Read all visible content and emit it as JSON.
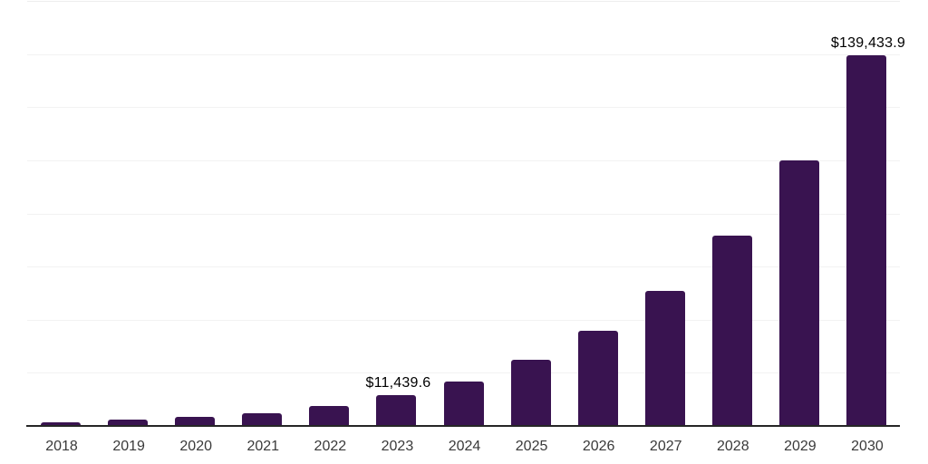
{
  "chart_data": {
    "type": "bar",
    "title": "",
    "xlabel": "",
    "ylabel": "",
    "categories": [
      "2018",
      "2019",
      "2020",
      "2021",
      "2022",
      "2023",
      "2024",
      "2025",
      "2026",
      "2027",
      "2028",
      "2029",
      "2030"
    ],
    "values": [
      1400,
      2250,
      3300,
      4800,
      7500,
      11439.6,
      16600,
      24800,
      35800,
      50700,
      71600,
      99900,
      139433.9
    ],
    "data_labels": {
      "2023": "$11,439.6",
      "2030": "$139,433.9"
    },
    "ylim": [
      0,
      160000
    ],
    "grid_step": 20000,
    "grid": "horizontal-only",
    "legend_position": "none",
    "y_tick_labels_visible": false,
    "colors": {
      "bar_fill": "#391350",
      "axis_line": "#262626",
      "gridline": "#f2f2f2",
      "top_gridline": "#eeeeee",
      "x_tick_label": "#3a3a3a",
      "data_label": "#000000",
      "background": "#ffffff"
    }
  }
}
